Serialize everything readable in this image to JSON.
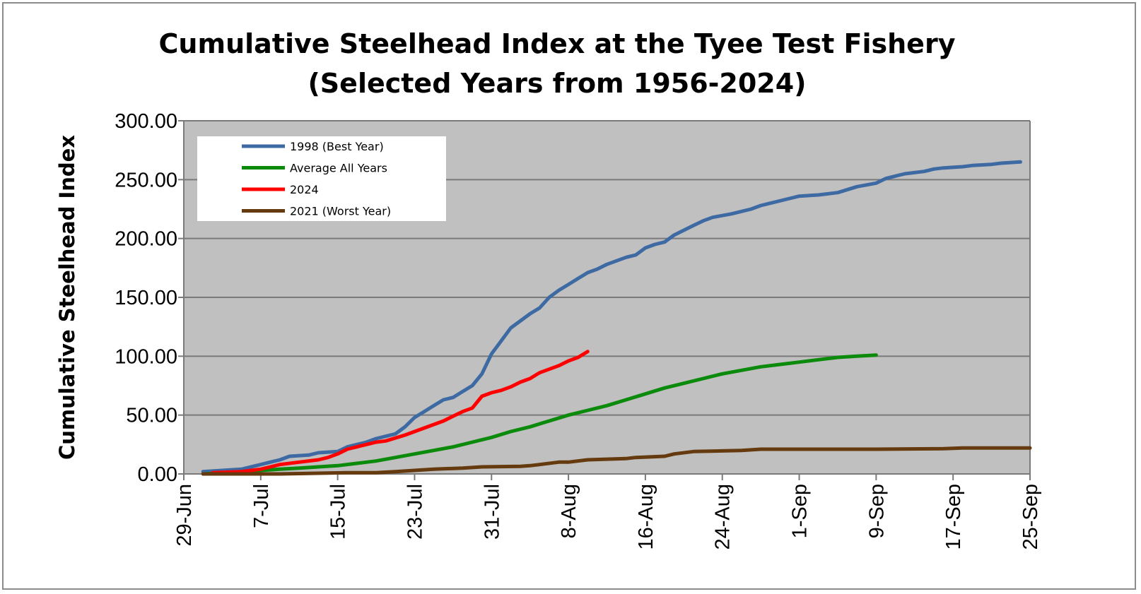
{
  "chart_data": {
    "type": "line",
    "title_lines": [
      "Cumulative Steelhead Index at the Tyee Test Fishery",
      "(Selected Years from 1956-2024)"
    ],
    "xlabel": "",
    "ylabel": "Cumulative Steelhead Index",
    "ylim": [
      0,
      300
    ],
    "yticks": [
      "0.00",
      "50.00",
      "100.00",
      "150.00",
      "200.00",
      "250.00",
      "300.00"
    ],
    "xlim": [
      "2024-06-29",
      "2024-09-25"
    ],
    "xticks": [
      "29-Jun",
      "7-Jul",
      "15-Jul",
      "23-Jul",
      "31-Jul",
      "8-Aug",
      "16-Aug",
      "24-Aug",
      "1-Sep",
      "9-Sep",
      "17-Sep",
      "25-Sep"
    ],
    "xtick_dates": [
      "2024-06-29",
      "2024-07-07",
      "2024-07-15",
      "2024-07-23",
      "2024-07-31",
      "2024-08-08",
      "2024-08-16",
      "2024-08-24",
      "2024-09-01",
      "2024-09-09",
      "2024-09-17",
      "2024-09-25"
    ],
    "grid": "horizontal",
    "plot_background": "#c0c0c0",
    "legend_position": "top-left",
    "series": [
      {
        "name": "1998 (Best Year)",
        "color": "#3e6aa3",
        "points": [
          [
            "2024-07-01",
            2
          ],
          [
            "2024-07-03",
            3
          ],
          [
            "2024-07-05",
            4
          ],
          [
            "2024-07-07",
            8
          ],
          [
            "2024-07-08",
            10
          ],
          [
            "2024-07-09",
            12
          ],
          [
            "2024-07-10",
            15
          ],
          [
            "2024-07-12",
            16
          ],
          [
            "2024-07-13",
            18
          ],
          [
            "2024-07-15",
            19
          ],
          [
            "2024-07-16",
            23
          ],
          [
            "2024-07-18",
            27
          ],
          [
            "2024-07-19",
            30
          ],
          [
            "2024-07-20",
            32
          ],
          [
            "2024-07-21",
            34
          ],
          [
            "2024-07-22",
            40
          ],
          [
            "2024-07-23",
            48
          ],
          [
            "2024-07-24",
            53
          ],
          [
            "2024-07-25",
            58
          ],
          [
            "2024-07-26",
            63
          ],
          [
            "2024-07-27",
            65
          ],
          [
            "2024-07-28",
            70
          ],
          [
            "2024-07-29",
            75
          ],
          [
            "2024-07-30",
            85
          ],
          [
            "2024-07-31",
            102
          ],
          [
            "2024-08-01",
            113
          ],
          [
            "2024-08-02",
            124
          ],
          [
            "2024-08-03",
            130
          ],
          [
            "2024-08-04",
            136
          ],
          [
            "2024-08-05",
            141
          ],
          [
            "2024-08-06",
            150
          ],
          [
            "2024-08-07",
            156
          ],
          [
            "2024-08-08",
            161
          ],
          [
            "2024-08-09",
            166
          ],
          [
            "2024-08-10",
            171
          ],
          [
            "2024-08-11",
            174
          ],
          [
            "2024-08-12",
            178
          ],
          [
            "2024-08-13",
            181
          ],
          [
            "2024-08-14",
            184
          ],
          [
            "2024-08-15",
            186
          ],
          [
            "2024-08-16",
            192
          ],
          [
            "2024-08-17",
            195
          ],
          [
            "2024-08-18",
            197
          ],
          [
            "2024-08-19",
            203
          ],
          [
            "2024-08-20",
            207
          ],
          [
            "2024-08-21",
            211
          ],
          [
            "2024-08-22",
            215
          ],
          [
            "2024-08-23",
            218
          ],
          [
            "2024-08-25",
            221
          ],
          [
            "2024-08-27",
            225
          ],
          [
            "2024-08-28",
            228
          ],
          [
            "2024-08-29",
            230
          ],
          [
            "2024-08-31",
            234
          ],
          [
            "2024-09-01",
            236
          ],
          [
            "2024-09-03",
            237
          ],
          [
            "2024-09-05",
            239
          ],
          [
            "2024-09-07",
            244
          ],
          [
            "2024-09-09",
            247
          ],
          [
            "2024-09-10",
            251
          ],
          [
            "2024-09-11",
            253
          ],
          [
            "2024-09-12",
            255
          ],
          [
            "2024-09-14",
            257
          ],
          [
            "2024-09-15",
            259
          ],
          [
            "2024-09-16",
            260
          ],
          [
            "2024-09-18",
            261
          ],
          [
            "2024-09-19",
            262
          ],
          [
            "2024-09-21",
            263
          ],
          [
            "2024-09-22",
            264
          ],
          [
            "2024-09-24",
            265
          ]
        ]
      },
      {
        "name": "Average All Years",
        "color": "#0b8a0b",
        "points": [
          [
            "2024-07-01",
            0
          ],
          [
            "2024-07-05",
            2
          ],
          [
            "2024-07-07",
            3
          ],
          [
            "2024-07-09",
            4
          ],
          [
            "2024-07-11",
            5
          ],
          [
            "2024-07-13",
            6
          ],
          [
            "2024-07-15",
            7
          ],
          [
            "2024-07-17",
            9
          ],
          [
            "2024-07-19",
            11
          ],
          [
            "2024-07-21",
            14
          ],
          [
            "2024-07-23",
            17
          ],
          [
            "2024-07-25",
            20
          ],
          [
            "2024-07-27",
            23
          ],
          [
            "2024-07-29",
            27
          ],
          [
            "2024-07-31",
            31
          ],
          [
            "2024-08-02",
            36
          ],
          [
            "2024-08-04",
            40
          ],
          [
            "2024-08-06",
            45
          ],
          [
            "2024-08-08",
            50
          ],
          [
            "2024-08-10",
            54
          ],
          [
            "2024-08-12",
            58
          ],
          [
            "2024-08-14",
            63
          ],
          [
            "2024-08-16",
            68
          ],
          [
            "2024-08-18",
            73
          ],
          [
            "2024-08-20",
            77
          ],
          [
            "2024-08-22",
            81
          ],
          [
            "2024-08-24",
            85
          ],
          [
            "2024-08-26",
            88
          ],
          [
            "2024-08-28",
            91
          ],
          [
            "2024-08-30",
            93
          ],
          [
            "2024-09-01",
            95
          ],
          [
            "2024-09-03",
            97
          ],
          [
            "2024-09-05",
            99
          ],
          [
            "2024-09-07",
            100
          ],
          [
            "2024-09-09",
            101
          ]
        ]
      },
      {
        "name": "2024",
        "color": "#ff0000",
        "points": [
          [
            "2024-07-02",
            1
          ],
          [
            "2024-07-05",
            2
          ],
          [
            "2024-07-06",
            3
          ],
          [
            "2024-07-07",
            4
          ],
          [
            "2024-07-08",
            6
          ],
          [
            "2024-07-09",
            8
          ],
          [
            "2024-07-11",
            10
          ],
          [
            "2024-07-13",
            12
          ],
          [
            "2024-07-14",
            14
          ],
          [
            "2024-07-15",
            17
          ],
          [
            "2024-07-16",
            21
          ],
          [
            "2024-07-18",
            25
          ],
          [
            "2024-07-19",
            27
          ],
          [
            "2024-07-20",
            28
          ],
          [
            "2024-07-22",
            33
          ],
          [
            "2024-07-23",
            36
          ],
          [
            "2024-07-24",
            39
          ],
          [
            "2024-07-25",
            42
          ],
          [
            "2024-07-26",
            45
          ],
          [
            "2024-07-27",
            49
          ],
          [
            "2024-07-28",
            53
          ],
          [
            "2024-07-29",
            56
          ],
          [
            "2024-07-30",
            66
          ],
          [
            "2024-07-31",
            69
          ],
          [
            "2024-08-01",
            71
          ],
          [
            "2024-08-02",
            74
          ],
          [
            "2024-08-03",
            78
          ],
          [
            "2024-08-04",
            81
          ],
          [
            "2024-08-05",
            86
          ],
          [
            "2024-08-06",
            89
          ],
          [
            "2024-08-07",
            92
          ],
          [
            "2024-08-08",
            96
          ],
          [
            "2024-08-09",
            99
          ],
          [
            "2024-08-10",
            104
          ]
        ]
      },
      {
        "name": "2021 (Worst Year)",
        "color": "#653a0e",
        "points": [
          [
            "2024-07-01",
            0
          ],
          [
            "2024-07-09",
            0
          ],
          [
            "2024-07-16",
            1
          ],
          [
            "2024-07-19",
            1
          ],
          [
            "2024-07-21",
            2
          ],
          [
            "2024-07-23",
            3
          ],
          [
            "2024-07-25",
            4
          ],
          [
            "2024-07-28",
            5
          ],
          [
            "2024-07-30",
            6
          ],
          [
            "2024-08-03",
            6.5
          ],
          [
            "2024-08-04",
            7
          ],
          [
            "2024-08-05",
            8
          ],
          [
            "2024-08-07",
            10
          ],
          [
            "2024-08-08",
            10
          ],
          [
            "2024-08-10",
            12
          ],
          [
            "2024-08-14",
            13
          ],
          [
            "2024-08-15",
            14
          ],
          [
            "2024-08-18",
            15
          ],
          [
            "2024-08-19",
            17
          ],
          [
            "2024-08-21",
            19
          ],
          [
            "2024-08-26",
            20
          ],
          [
            "2024-08-28",
            21
          ],
          [
            "2024-09-09",
            21
          ],
          [
            "2024-09-16",
            21.5
          ],
          [
            "2024-09-18",
            22
          ],
          [
            "2024-09-25",
            22
          ]
        ]
      }
    ]
  }
}
